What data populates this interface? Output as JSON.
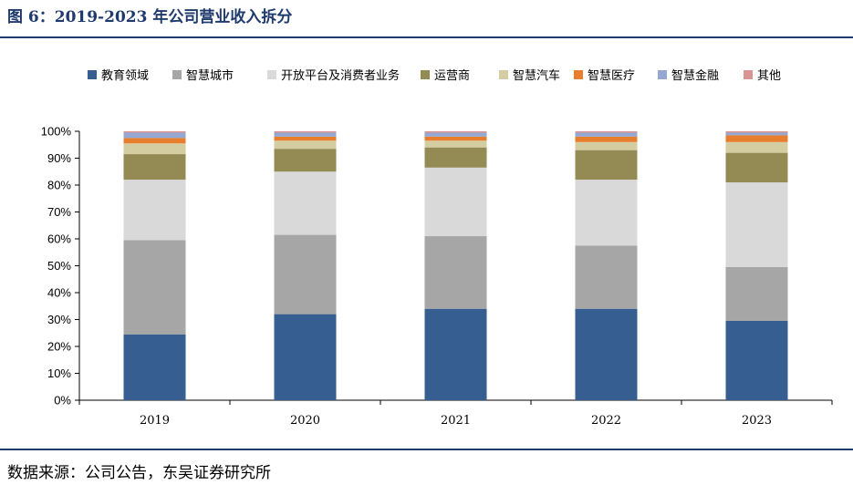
{
  "header": {
    "title": "图 6：2019-2023 年公司营业收入拆分"
  },
  "footer": {
    "source": "数据来源：公司公告，东吴证券研究所"
  },
  "chart_data": {
    "type": "bar",
    "stacked": true,
    "categories": [
      "2019",
      "2020",
      "2021",
      "2022",
      "2023"
    ],
    "ylim": [
      0,
      100
    ],
    "yticks": [
      "0%",
      "10%",
      "20%",
      "30%",
      "40%",
      "50%",
      "60%",
      "70%",
      "80%",
      "90%",
      "100%"
    ],
    "legend_position": "top",
    "series": [
      {
        "name": "教育领域",
        "color": "#365e91",
        "values": [
          24.5,
          32,
          34,
          34,
          29.5
        ]
      },
      {
        "name": "智慧城市",
        "color": "#a6a6a6",
        "values": [
          35,
          29.5,
          27,
          23.5,
          20
        ]
      },
      {
        "name": "开放平台及消费者业务",
        "color": "#d9d9d9",
        "values": [
          22.5,
          23.5,
          25.5,
          24.5,
          31.5
        ]
      },
      {
        "name": "运营商",
        "color": "#948a54",
        "values": [
          9.5,
          8.5,
          7.5,
          11,
          11
        ]
      },
      {
        "name": "智慧汽车",
        "color": "#d5cda2",
        "values": [
          4,
          3,
          2.5,
          3,
          4
        ]
      },
      {
        "name": "智慧医疗",
        "color": "#e67e2e",
        "values": [
          2,
          1.5,
          1.5,
          2,
          2.5
        ]
      },
      {
        "name": "智慧金融",
        "color": "#95a8d1",
        "values": [
          2,
          1.5,
          1.5,
          1.5,
          1
        ]
      },
      {
        "name": "其他",
        "color": "#d99594",
        "values": [
          0.5,
          0.5,
          0.5,
          0.5,
          0.5
        ]
      }
    ]
  }
}
